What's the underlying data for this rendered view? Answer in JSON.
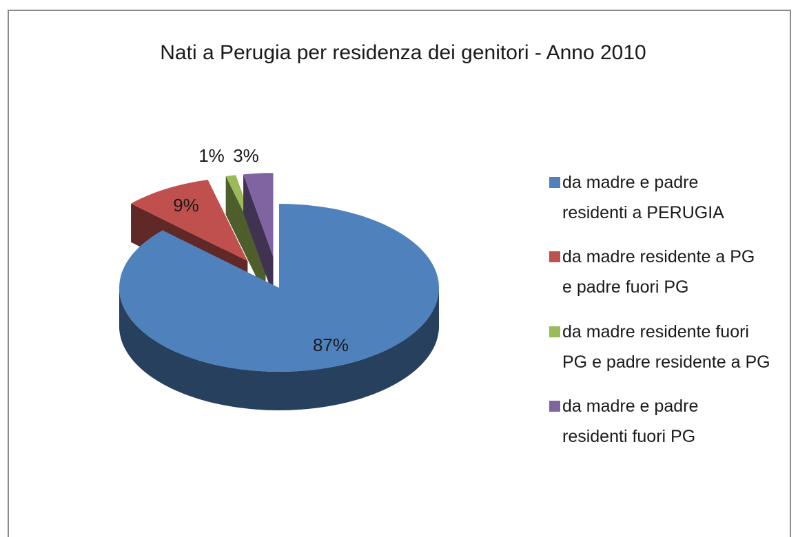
{
  "chart_data": {
    "type": "pie",
    "title": "Nati a Perugia per residenza dei genitori - Anno 2010",
    "categories": [
      "da madre e padre residenti a PERUGIA",
      "da madre residente a PG e padre fuori PG",
      "da madre residente fuori PG e padre residente a PG",
      "da madre e padre residenti fuori PG"
    ],
    "values": [
      87,
      9,
      1,
      3
    ],
    "value_labels": [
      "87%",
      "9%",
      "1%",
      "3%"
    ],
    "colors": [
      "#4f81bd",
      "#c0504d",
      "#9bbb59",
      "#8064a2"
    ],
    "legend": "right"
  }
}
